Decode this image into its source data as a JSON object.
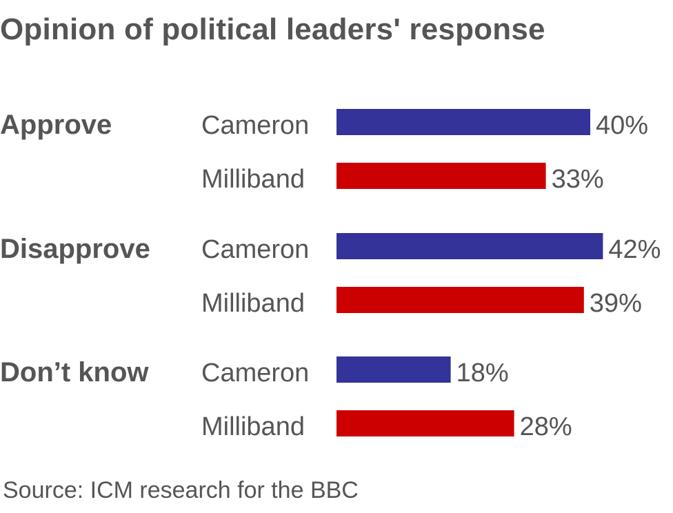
{
  "title": "Opinion of political leaders' response",
  "source": "Source: ICM research for the BBC",
  "colors": {
    "Cameron": "#333399",
    "Milliband": "#cc0000"
  },
  "chart_data": {
    "type": "bar",
    "orientation": "horizontal",
    "title": "Opinion of political leaders' response",
    "categories": [
      "Approve",
      "Disapprove",
      "Don’t know"
    ],
    "series": [
      {
        "name": "Cameron",
        "values": [
          40,
          42,
          18
        ],
        "labels": [
          "40%",
          "42%",
          "18%"
        ]
      },
      {
        "name": "Milliband",
        "values": [
          33,
          39,
          28
        ],
        "labels": [
          "33%",
          "39%",
          "28%"
        ]
      }
    ],
    "unit": "%",
    "grid": false
  }
}
